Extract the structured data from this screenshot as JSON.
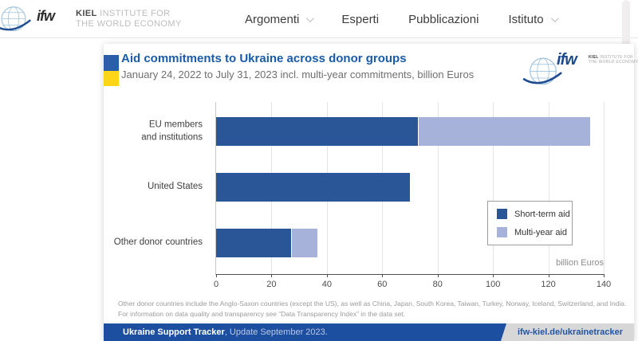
{
  "logo": {
    "ifw": "ifw",
    "kiel": "KIEL",
    "institute": "INSTITUTE FOR",
    "economy": "THE WORLD ECONOMY"
  },
  "header": {
    "nav": [
      {
        "label": "Argomenti",
        "has_dropdown": true
      },
      {
        "label": "Esperti",
        "has_dropdown": false
      },
      {
        "label": "Pubblicazioni",
        "has_dropdown": false
      },
      {
        "label": "Istituto",
        "has_dropdown": true
      }
    ]
  },
  "card": {
    "title": "Aid commitments to Ukraine across donor groups",
    "subtitle": "January 24, 2022 to July 31, 2023 incl. multi-year commitments, billion Euros",
    "footnote": "Other donor countries include the Anglo-Saxon countries (except the US), as well as China, Japan, South Korea, Taiwan, Turkey, Norway, Iceland, Switzerland, and India. For information on data quality and transparency see “Data Transparency Index” in the data set.",
    "footer": {
      "source_bold": "Ukraine Support Tracker",
      "source_rest": ", Update September 2023.",
      "url": "ifw-kiel.de/ukrainetracker"
    }
  },
  "chart_data": {
    "type": "bar",
    "orientation": "horizontal",
    "stacked": true,
    "categories": [
      "EU members\nand institutions",
      "United States",
      "Other donor countries"
    ],
    "series": [
      {
        "name": "Short-term aid",
        "color": "#2a5597",
        "values": [
          73,
          70,
          27
        ]
      },
      {
        "name": "Multi-year aid",
        "color": "#a7b2da",
        "values": [
          62,
          0,
          9.5
        ]
      }
    ],
    "xlim": [
      0,
      140
    ],
    "xticks": [
      0,
      20,
      40,
      60,
      80,
      100,
      120,
      140
    ],
    "unit_label": "billion Euros",
    "legend_position": "inside-right",
    "grid": true
  },
  "colors": {
    "accent_blue": "#1a5ba8",
    "bar_dark": "#2a5597",
    "bar_light": "#a7b2da",
    "footer_blue": "#1c4f9f",
    "footer_gray": "#d8d7d7",
    "flag_blue": "#2a5ea8",
    "flag_yellow": "#ffd617"
  }
}
